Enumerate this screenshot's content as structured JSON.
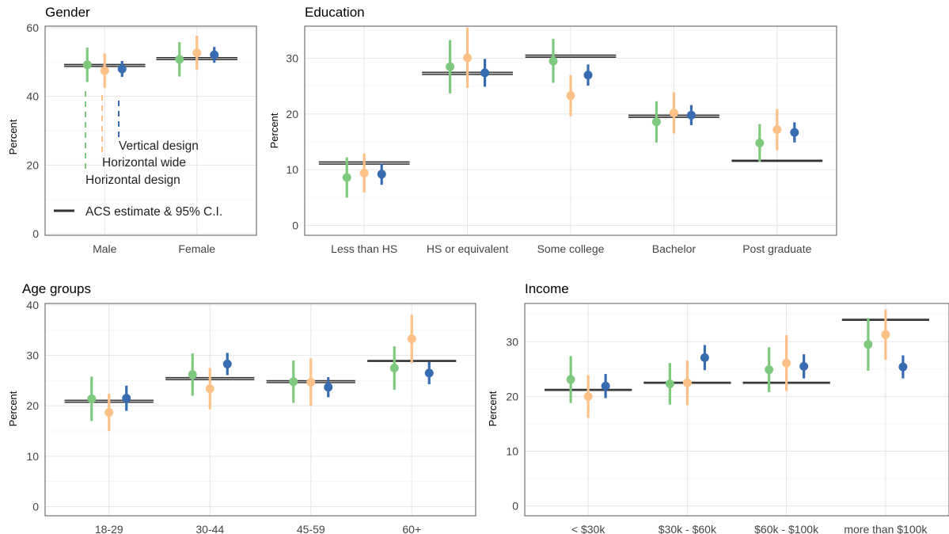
{
  "colors": {
    "horizontal_design": "#7fc97f",
    "horizontal_wide": "#fdc086",
    "vertical_design": "#386cb0",
    "acs": "#333333"
  },
  "legend": {
    "vertical": "Vertical design",
    "wide": "Horizontal wide",
    "horizontal": "Horizontal design",
    "acs": "ACS estimate & 95% C.I."
  },
  "chart_data": [
    {
      "type": "pointrange",
      "title": "Gender",
      "ylabel": "Percent",
      "ylim": [
        0,
        60
      ],
      "yticks": [
        0,
        20,
        40,
        60
      ],
      "categories": [
        "Male",
        "Female"
      ],
      "acs": [
        {
          "lo": 48.7,
          "est": 49.0,
          "hi": 49.3
        },
        {
          "lo": 50.7,
          "est": 51.0,
          "hi": 51.3
        }
      ],
      "series": [
        {
          "name": "Horizontal design",
          "points": [
            {
              "est": 49.2,
              "lo": 44.2,
              "hi": 54.2
            },
            {
              "est": 50.8,
              "lo": 45.8,
              "hi": 55.8
            }
          ]
        },
        {
          "name": "Horizontal wide",
          "points": [
            {
              "est": 47.5,
              "lo": 42.5,
              "hi": 52.5
            },
            {
              "est": 52.7,
              "lo": 47.7,
              "hi": 57.7
            }
          ]
        },
        {
          "name": "Vertical design",
          "points": [
            {
              "est": 48.0,
              "lo": 45.7,
              "hi": 50.3
            },
            {
              "est": 52.1,
              "lo": 49.8,
              "hi": 54.4
            }
          ]
        }
      ]
    },
    {
      "type": "pointrange",
      "title": "Education",
      "ylabel": "Percent",
      "ylim": [
        -1.5,
        35.5
      ],
      "yticks": [
        0,
        10,
        20,
        30
      ],
      "categories": [
        "Less than HS",
        "HS or equivalent",
        "Some college",
        "Bachelor",
        "Post graduate"
      ],
      "acs": [
        {
          "lo": 11.0,
          "est": 11.2,
          "hi": 11.4
        },
        {
          "lo": 27.1,
          "est": 27.3,
          "hi": 27.5
        },
        {
          "lo": 30.2,
          "est": 30.4,
          "hi": 30.6
        },
        {
          "lo": 19.4,
          "est": 19.6,
          "hi": 19.8
        },
        {
          "lo": 11.5,
          "est": 11.6,
          "hi": 11.7
        }
      ],
      "series": [
        {
          "name": "Horizontal design",
          "points": [
            {
              "est": 8.6,
              "lo": 5.0,
              "hi": 12.2
            },
            {
              "est": 28.5,
              "lo": 23.7,
              "hi": 33.3
            },
            {
              "est": 29.5,
              "lo": 25.6,
              "hi": 33.5
            },
            {
              "est": 18.6,
              "lo": 14.9,
              "hi": 22.3
            },
            {
              "est": 14.8,
              "lo": 11.4,
              "hi": 18.2
            }
          ]
        },
        {
          "name": "Horizontal wide",
          "points": [
            {
              "est": 9.4,
              "lo": 5.9,
              "hi": 12.9
            },
            {
              "est": 30.1,
              "lo": 24.7,
              "hi": 35.5
            },
            {
              "est": 23.3,
              "lo": 19.6,
              "hi": 27.0
            },
            {
              "est": 20.2,
              "lo": 16.5,
              "hi": 23.9
            },
            {
              "est": 17.2,
              "lo": 13.5,
              "hi": 20.9
            }
          ]
        },
        {
          "name": "Vertical design",
          "points": [
            {
              "est": 9.2,
              "lo": 7.3,
              "hi": 11.1
            },
            {
              "est": 27.4,
              "lo": 24.9,
              "hi": 29.9
            },
            {
              "est": 27.0,
              "lo": 25.1,
              "hi": 28.9
            },
            {
              "est": 19.8,
              "lo": 18.0,
              "hi": 21.6
            },
            {
              "est": 16.7,
              "lo": 14.9,
              "hi": 18.5
            }
          ]
        }
      ]
    },
    {
      "type": "pointrange",
      "title": "Age groups",
      "ylabel": "Percent",
      "ylim": [
        -1.5,
        40
      ],
      "yticks": [
        0,
        10,
        20,
        30,
        40
      ],
      "categories": [
        "18-29",
        "30-44",
        "45-59",
        "60+"
      ],
      "acs": [
        {
          "lo": 20.7,
          "est": 20.9,
          "hi": 21.1
        },
        {
          "lo": 25.2,
          "est": 25.4,
          "hi": 25.6
        },
        {
          "lo": 24.6,
          "est": 24.8,
          "hi": 25.0
        },
        {
          "lo": 28.9,
          "est": 28.9,
          "hi": 28.9
        }
      ],
      "series": [
        {
          "name": "Horizontal design",
          "points": [
            {
              "est": 21.4,
              "lo": 17.0,
              "hi": 25.8
            },
            {
              "est": 26.2,
              "lo": 22.0,
              "hi": 30.4
            },
            {
              "est": 24.8,
              "lo": 20.6,
              "hi": 29.0
            },
            {
              "est": 27.5,
              "lo": 23.2,
              "hi": 31.8
            }
          ]
        },
        {
          "name": "Horizontal wide",
          "points": [
            {
              "est": 18.7,
              "lo": 15.0,
              "hi": 22.4
            },
            {
              "est": 23.4,
              "lo": 19.3,
              "hi": 27.5
            },
            {
              "est": 24.7,
              "lo": 20.0,
              "hi": 29.4
            },
            {
              "est": 33.3,
              "lo": 28.5,
              "hi": 38.1
            }
          ]
        },
        {
          "name": "Vertical design",
          "points": [
            {
              "est": 21.5,
              "lo": 19.0,
              "hi": 24.0
            },
            {
              "est": 28.3,
              "lo": 26.1,
              "hi": 30.5
            },
            {
              "est": 23.7,
              "lo": 21.7,
              "hi": 25.7
            },
            {
              "est": 26.5,
              "lo": 24.3,
              "hi": 28.7
            }
          ]
        }
      ]
    },
    {
      "type": "pointrange",
      "title": "Income",
      "ylabel": "Percent",
      "ylim": [
        -1.5,
        36.7
      ],
      "yticks": [
        0,
        10,
        20,
        30
      ],
      "categories": [
        "< $30k",
        "$30k - $60k",
        "$60k - $100k",
        "more than $100k"
      ],
      "acs": [
        {
          "lo": 21.1,
          "est": 21.2,
          "hi": 21.3
        },
        {
          "lo": 22.4,
          "est": 22.5,
          "hi": 22.6
        },
        {
          "lo": 22.4,
          "est": 22.5,
          "hi": 22.6
        },
        {
          "lo": 33.9,
          "est": 34.0,
          "hi": 34.1
        }
      ],
      "series": [
        {
          "name": "Horizontal design",
          "points": [
            {
              "est": 23.1,
              "lo": 18.8,
              "hi": 27.4
            },
            {
              "est": 22.3,
              "lo": 18.5,
              "hi": 26.1
            },
            {
              "est": 24.9,
              "lo": 20.8,
              "hi": 29.0
            },
            {
              "est": 29.5,
              "lo": 24.7,
              "hi": 34.3
            }
          ]
        },
        {
          "name": "Horizontal wide",
          "points": [
            {
              "est": 20.0,
              "lo": 16.1,
              "hi": 23.9
            },
            {
              "est": 22.5,
              "lo": 18.4,
              "hi": 26.6
            },
            {
              "est": 26.1,
              "lo": 21.0,
              "hi": 31.2
            },
            {
              "est": 31.3,
              "lo": 26.7,
              "hi": 35.9
            }
          ]
        },
        {
          "name": "Vertical design",
          "points": [
            {
              "est": 21.9,
              "lo": 19.7,
              "hi": 24.1
            },
            {
              "est": 27.1,
              "lo": 24.8,
              "hi": 29.4
            },
            {
              "est": 25.5,
              "lo": 23.3,
              "hi": 27.7
            },
            {
              "est": 25.4,
              "lo": 23.3,
              "hi": 27.5
            }
          ]
        }
      ]
    }
  ]
}
